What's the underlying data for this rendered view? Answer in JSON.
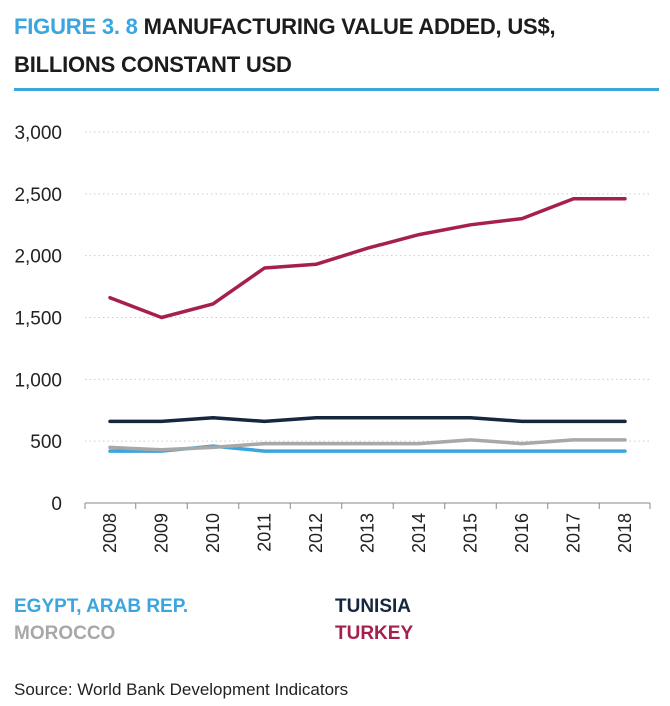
{
  "title": {
    "figure_label": "FIGURE 3. 8",
    "text": "MANUFACTURING VALUE ADDED, US$, BILLIONS CONSTANT USD"
  },
  "colors": {
    "figure_label": "#3aa5de",
    "rule": "#3aa5de",
    "egypt": "#3aa5de",
    "tunisia": "#14273f",
    "morocco": "#a8a8a8",
    "turkey": "#a6204f",
    "axis": "#888888",
    "grid": "#cccccc"
  },
  "chart_data": {
    "type": "line",
    "title": "MANUFACTURING VALUE ADDED, US$, BILLIONS CONSTANT USD",
    "xlabel": "",
    "ylabel": "",
    "x": [
      "2008",
      "2009",
      "2010",
      "2011",
      "2012",
      "2013",
      "2014",
      "2015",
      "2016",
      "2017",
      "2018"
    ],
    "ylim": [
      0,
      3000
    ],
    "yticks": [
      0,
      500,
      1000,
      1500,
      2000,
      2500,
      3000
    ],
    "ytick_labels": [
      "0",
      "500",
      "1,000",
      "1,500",
      "2,000",
      "2,500",
      "3,000"
    ],
    "grid": true,
    "series": [
      {
        "name": "EGYPT, ARAB REP.",
        "key": "egypt",
        "values": [
          420,
          420,
          460,
          420,
          420,
          420,
          420,
          420,
          420,
          420,
          420
        ]
      },
      {
        "name": "MOROCCO",
        "key": "morocco",
        "values": [
          450,
          430,
          450,
          480,
          480,
          480,
          480,
          510,
          480,
          510,
          510
        ]
      },
      {
        "name": "TUNISIA",
        "key": "tunisia",
        "values": [
          660,
          660,
          690,
          660,
          690,
          690,
          690,
          690,
          660,
          660,
          660
        ]
      },
      {
        "name": "TURKEY",
        "key": "turkey",
        "values": [
          1660,
          1500,
          1610,
          1900,
          1930,
          2060,
          2170,
          2250,
          2300,
          2460,
          2460
        ]
      }
    ]
  },
  "legend": {
    "egypt": "EGYPT, ARAB REP.",
    "tunisia": "TUNISIA",
    "morocco": "MOROCCO",
    "turkey": "TURKEY"
  },
  "source": "Source: World Bank Development Indicators"
}
